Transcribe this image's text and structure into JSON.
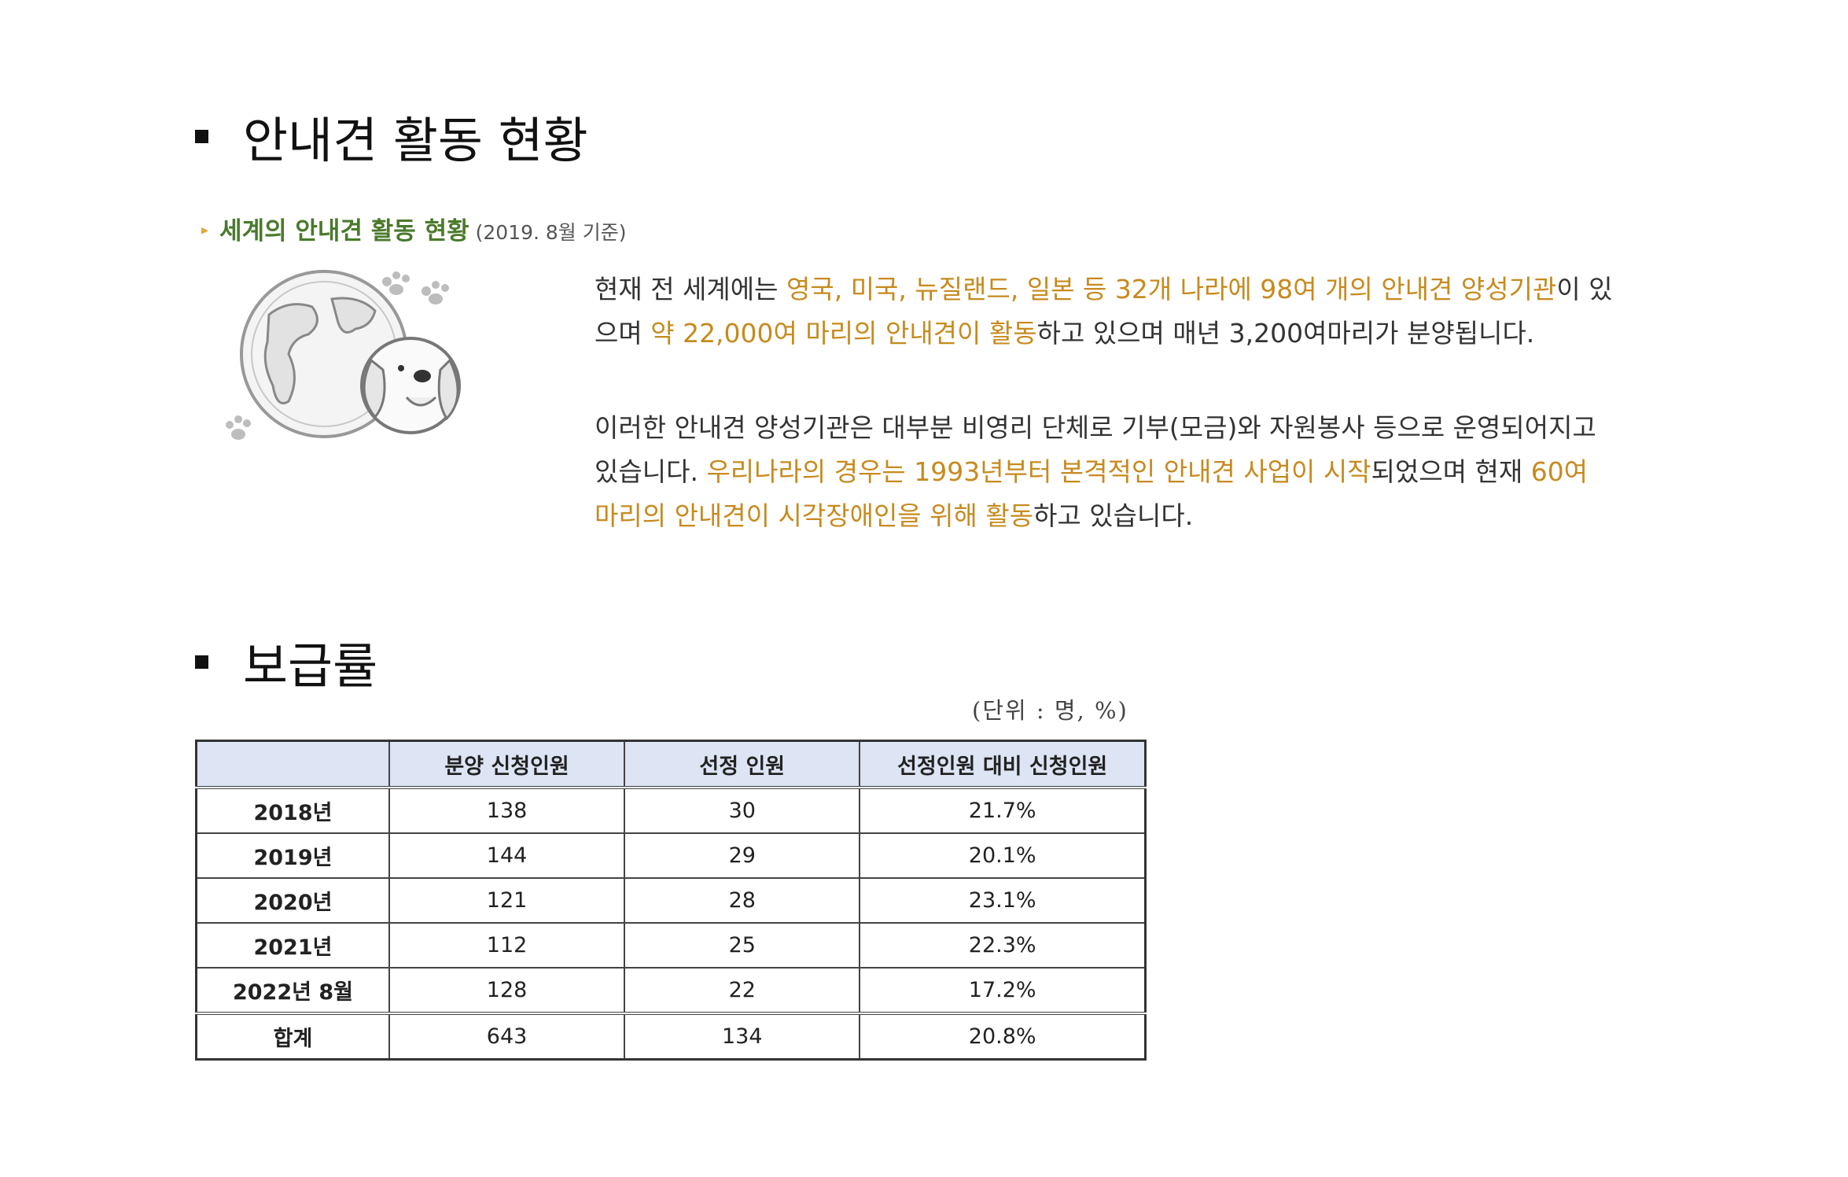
{
  "section1": {
    "title": "안내견 활동 현황"
  },
  "subheading": {
    "label": "세계의 안내견 활동 현황",
    "note": "(2019. 8월 기준)"
  },
  "paragraph1": [
    {
      "text": "현재 전 세계에는 ",
      "hl": false
    },
    {
      "text": "영국, 미국, 뉴질랜드, 일본 등 32개 나라에 98여 개의 안내견 양성기관",
      "hl": true
    },
    {
      "text": "이 있으며 ",
      "hl": false
    },
    {
      "text": "약 22,000여 마리의 안내견이 활동",
      "hl": true
    },
    {
      "text": "하고 있으며 매년 3,200여마리가 분양됩니다.",
      "hl": false
    }
  ],
  "paragraph2": [
    {
      "text": "이러한 안내견 양성기관은 대부분 비영리 단체로 기부(모금)와 자원봉사 등으로 운영되어지고 있습니다. ",
      "hl": false
    },
    {
      "text": "우리나라의 경우는 1993년부터 본격적인 안내견 사업이 시작",
      "hl": true
    },
    {
      "text": "되었으며 현재 ",
      "hl": false
    },
    {
      "text": "60여 마리의 안내견이 시각장애인을 위해 활동",
      "hl": true
    },
    {
      "text": "하고 있습니다.",
      "hl": false
    }
  ],
  "section2": {
    "title": "보급률"
  },
  "table": {
    "unit": "(단위 : 명, %)",
    "headers": [
      "",
      "분양 신청인원",
      "선정 인원",
      "선정인원 대비 신청인원"
    ],
    "rows": [
      {
        "label": "2018년",
        "cells": [
          "138",
          "30",
          "21.7%"
        ]
      },
      {
        "label": "2019년",
        "cells": [
          "144",
          "29",
          "20.1%"
        ]
      },
      {
        "label": "2020년",
        "cells": [
          "121",
          "28",
          "23.1%"
        ]
      },
      {
        "label": "2021년",
        "cells": [
          "112",
          "25",
          "22.3%"
        ]
      },
      {
        "label": "2022년 8월",
        "cells": [
          "128",
          "22",
          "17.2%"
        ]
      }
    ],
    "total": {
      "label": "합계",
      "cells": [
        "643",
        "134",
        "20.8%"
      ]
    }
  },
  "colors": {
    "highlight": "#c78a1e",
    "subheading": "#4a7a2c",
    "table_header_bg": "#dde4f4"
  },
  "icons": {
    "illustration": "globe-with-dog-illustration"
  }
}
